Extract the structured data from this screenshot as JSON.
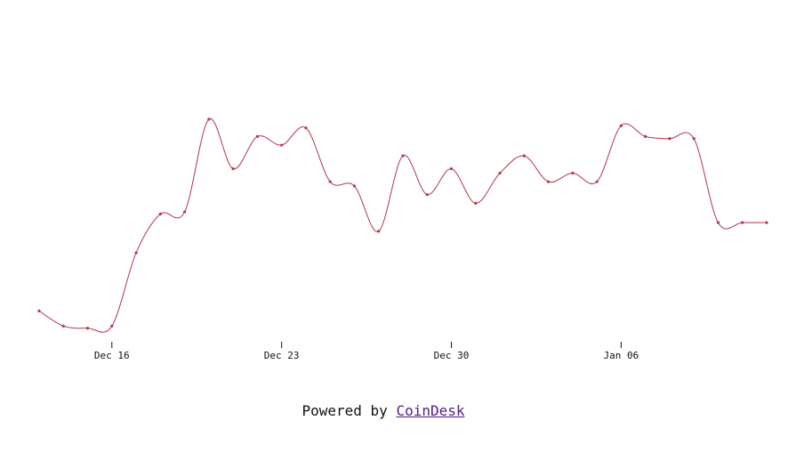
{
  "chart_data": {
    "type": "line",
    "series_color": "#b5354b",
    "x_ticks": [
      "Dec 16",
      "Dec 23",
      "Dec 30",
      "Jan 06"
    ],
    "x_tick_days": [
      3,
      10,
      17,
      24
    ],
    "x_domain_days": [
      0,
      30
    ],
    "y_domain": [
      0,
      100
    ],
    "points": [
      {
        "date": "Dec 13",
        "value": 11
      },
      {
        "date": "Dec 14",
        "value": 4
      },
      {
        "date": "Dec 15",
        "value": 3
      },
      {
        "date": "Dec 16",
        "value": 4
      },
      {
        "date": "Dec 17",
        "value": 38
      },
      {
        "date": "Dec 18",
        "value": 56
      },
      {
        "date": "Dec 19",
        "value": 57
      },
      {
        "date": "Dec 20",
        "value": 100
      },
      {
        "date": "Dec 21",
        "value": 77
      },
      {
        "date": "Dec 22",
        "value": 92
      },
      {
        "date": "Dec 23",
        "value": 88
      },
      {
        "date": "Dec 24",
        "value": 96
      },
      {
        "date": "Dec 25",
        "value": 71
      },
      {
        "date": "Dec 26",
        "value": 69
      },
      {
        "date": "Dec 27",
        "value": 48
      },
      {
        "date": "Dec 28",
        "value": 83
      },
      {
        "date": "Dec 29",
        "value": 65
      },
      {
        "date": "Dec 30",
        "value": 77
      },
      {
        "date": "Dec 31",
        "value": 61
      },
      {
        "date": "Jan 01",
        "value": 75
      },
      {
        "date": "Jan 02",
        "value": 83
      },
      {
        "date": "Jan 03",
        "value": 71
      },
      {
        "date": "Jan 04",
        "value": 75
      },
      {
        "date": "Jan 05",
        "value": 71
      },
      {
        "date": "Jan 06",
        "value": 97
      },
      {
        "date": "Jan 07",
        "value": 92
      },
      {
        "date": "Jan 08",
        "value": 91
      },
      {
        "date": "Jan 09",
        "value": 91
      },
      {
        "date": "Jan 10",
        "value": 52
      },
      {
        "date": "Jan 11",
        "value": 52
      },
      {
        "date": "Jan 12",
        "value": 52
      }
    ]
  },
  "footer": {
    "prefix": "Powered by ",
    "link_text": "CoinDesk"
  }
}
